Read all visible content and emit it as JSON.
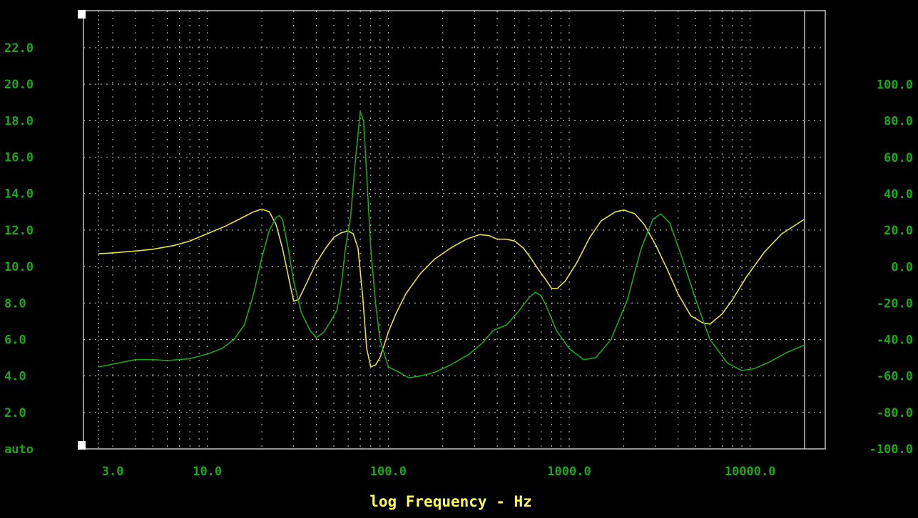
{
  "chart_data": {
    "type": "line",
    "xlabel": "log Frequency - Hz",
    "x_scale": "log",
    "xlim": [
      2.5,
      20000
    ],
    "ylim_left": [
      0,
      24
    ],
    "ylim_right": [
      -100,
      120
    ],
    "grid": true,
    "x_ticks": [
      {
        "value": 3,
        "label": "3.0"
      },
      {
        "value": 10,
        "label": "10.0"
      },
      {
        "value": 100,
        "label": "100.0"
      },
      {
        "value": 1000,
        "label": "1000.0"
      },
      {
        "value": 10000,
        "label": "10000.0"
      }
    ],
    "y_left_ticks": [
      {
        "value": 0,
        "label": "auto"
      },
      {
        "value": 2,
        "label": "2.0"
      },
      {
        "value": 4,
        "label": "4.0"
      },
      {
        "value": 6,
        "label": "6.0"
      },
      {
        "value": 8,
        "label": "8.0"
      },
      {
        "value": 10,
        "label": "10.0"
      },
      {
        "value": 12,
        "label": "12.0"
      },
      {
        "value": 14,
        "label": "14.0"
      },
      {
        "value": 16,
        "label": "16.0"
      },
      {
        "value": 18,
        "label": "18.0"
      },
      {
        "value": 20,
        "label": "20.0"
      },
      {
        "value": 22,
        "label": "22.0"
      }
    ],
    "y_right_ticks": [
      {
        "value": -100,
        "label": "-100.0"
      },
      {
        "value": -80,
        "label": "-80.0"
      },
      {
        "value": -60,
        "label": "-60.0"
      },
      {
        "value": -40,
        "label": "-40.0"
      },
      {
        "value": -20,
        "label": "-20.0"
      },
      {
        "value": 0,
        "label": "0.0"
      },
      {
        "value": 20,
        "label": "20.0"
      },
      {
        "value": 40,
        "label": "40.0"
      },
      {
        "value": 60,
        "label": "60.0"
      },
      {
        "value": 80,
        "label": "80.0"
      },
      {
        "value": 100,
        "label": "100.0"
      }
    ],
    "colors": {
      "background": "#000000",
      "frame": "#c0c0c0",
      "grid": "#d0d0d0",
      "axis_text": "#18a818",
      "xlabel_text": "#ffff50",
      "yellow_series": "#e8e040",
      "green_series": "#18a818"
    },
    "series": [
      {
        "axis": "left",
        "color": "#e8e040",
        "points": [
          [
            2.5,
            10.7
          ],
          [
            3.0,
            10.75
          ],
          [
            4.0,
            10.85
          ],
          [
            5.0,
            10.95
          ],
          [
            6.5,
            11.15
          ],
          [
            8.0,
            11.4
          ],
          [
            10.0,
            11.8
          ],
          [
            12.5,
            12.2
          ],
          [
            15.0,
            12.6
          ],
          [
            18.0,
            13.0
          ],
          [
            20.0,
            13.15
          ],
          [
            22.0,
            13.0
          ],
          [
            24.0,
            12.3
          ],
          [
            26.0,
            11.0
          ],
          [
            28.0,
            9.5
          ],
          [
            30.0,
            8.1
          ],
          [
            32.0,
            8.2
          ],
          [
            35.0,
            9.0
          ],
          [
            40.0,
            10.2
          ],
          [
            45.0,
            11.0
          ],
          [
            50.0,
            11.6
          ],
          [
            55.0,
            11.85
          ],
          [
            60.0,
            11.95
          ],
          [
            64.0,
            11.8
          ],
          [
            68.0,
            11.0
          ],
          [
            72.0,
            8.5
          ],
          [
            76.0,
            5.5
          ],
          [
            80.0,
            4.5
          ],
          [
            85.0,
            4.6
          ],
          [
            90.0,
            5.0
          ],
          [
            95.0,
            5.7
          ],
          [
            100.0,
            6.4
          ],
          [
            110.0,
            7.4
          ],
          [
            125.0,
            8.5
          ],
          [
            150.0,
            9.6
          ],
          [
            180.0,
            10.4
          ],
          [
            220.0,
            11.0
          ],
          [
            270.0,
            11.5
          ],
          [
            320.0,
            11.75
          ],
          [
            360.0,
            11.7
          ],
          [
            400.0,
            11.5
          ],
          [
            450.0,
            11.5
          ],
          [
            500.0,
            11.4
          ],
          [
            560.0,
            11.0
          ],
          [
            620.0,
            10.4
          ],
          [
            680.0,
            9.8
          ],
          [
            740.0,
            9.3
          ],
          [
            800.0,
            8.8
          ],
          [
            860.0,
            8.8
          ],
          [
            950.0,
            9.2
          ],
          [
            1100.0,
            10.2
          ],
          [
            1300.0,
            11.6
          ],
          [
            1500.0,
            12.5
          ],
          [
            1800.0,
            13.0
          ],
          [
            2000.0,
            13.1
          ],
          [
            2300.0,
            12.9
          ],
          [
            2600.0,
            12.3
          ],
          [
            3000.0,
            11.2
          ],
          [
            3500.0,
            9.8
          ],
          [
            4000.0,
            8.5
          ],
          [
            4700.0,
            7.3
          ],
          [
            5500.0,
            6.9
          ],
          [
            6000.0,
            6.85
          ],
          [
            7000.0,
            7.4
          ],
          [
            8000.0,
            8.2
          ],
          [
            9500.0,
            9.4
          ],
          [
            12000.0,
            10.8
          ],
          [
            15000.0,
            11.8
          ],
          [
            20000.0,
            12.6
          ]
        ]
      },
      {
        "axis": "right",
        "color": "#18a818",
        "points": [
          [
            2.5,
            -55
          ],
          [
            3.0,
            -53.5
          ],
          [
            4.0,
            -51
          ],
          [
            5.0,
            -51
          ],
          [
            6.0,
            -51.5
          ],
          [
            8.0,
            -50.5
          ],
          [
            10.0,
            -48
          ],
          [
            12.0,
            -45
          ],
          [
            14.0,
            -40
          ],
          [
            16.0,
            -32
          ],
          [
            18.0,
            -15
          ],
          [
            20.0,
            5
          ],
          [
            22.0,
            20
          ],
          [
            24.0,
            27
          ],
          [
            25.0,
            28
          ],
          [
            26.0,
            26
          ],
          [
            28.0,
            10
          ],
          [
            30.0,
            -8
          ],
          [
            33.0,
            -25
          ],
          [
            37.0,
            -35
          ],
          [
            40.0,
            -39
          ],
          [
            44.0,
            -36
          ],
          [
            48.0,
            -30
          ],
          [
            52.0,
            -24
          ],
          [
            55.0,
            -10
          ],
          [
            58.0,
            10
          ],
          [
            62.0,
            28
          ],
          [
            66.0,
            60
          ],
          [
            70.0,
            85
          ],
          [
            73.0,
            80
          ],
          [
            76.0,
            50
          ],
          [
            80.0,
            10
          ],
          [
            85.0,
            -20
          ],
          [
            90.0,
            -40
          ],
          [
            100.0,
            -55
          ],
          [
            115.0,
            -58
          ],
          [
            130.0,
            -61
          ],
          [
            150.0,
            -60
          ],
          [
            180.0,
            -58
          ],
          [
            220.0,
            -54
          ],
          [
            280.0,
            -48
          ],
          [
            330.0,
            -42
          ],
          [
            380.0,
            -35
          ],
          [
            450.0,
            -32
          ],
          [
            520.0,
            -25
          ],
          [
            600.0,
            -17
          ],
          [
            650.0,
            -14
          ],
          [
            700.0,
            -16
          ],
          [
            750.0,
            -22
          ],
          [
            850.0,
            -35
          ],
          [
            1000.0,
            -45
          ],
          [
            1200.0,
            -51
          ],
          [
            1400.0,
            -50
          ],
          [
            1700.0,
            -40
          ],
          [
            2100.0,
            -18
          ],
          [
            2500.0,
            10
          ],
          [
            2900.0,
            26
          ],
          [
            3200.0,
            29
          ],
          [
            3600.0,
            24
          ],
          [
            4200.0,
            5
          ],
          [
            5000.0,
            -18
          ],
          [
            6000.0,
            -40
          ],
          [
            7500.0,
            -53
          ],
          [
            9000.0,
            -57
          ],
          [
            10500.0,
            -56
          ],
          [
            13000.0,
            -52
          ],
          [
            16000.0,
            -47
          ],
          [
            20000.0,
            -43
          ]
        ]
      }
    ]
  }
}
